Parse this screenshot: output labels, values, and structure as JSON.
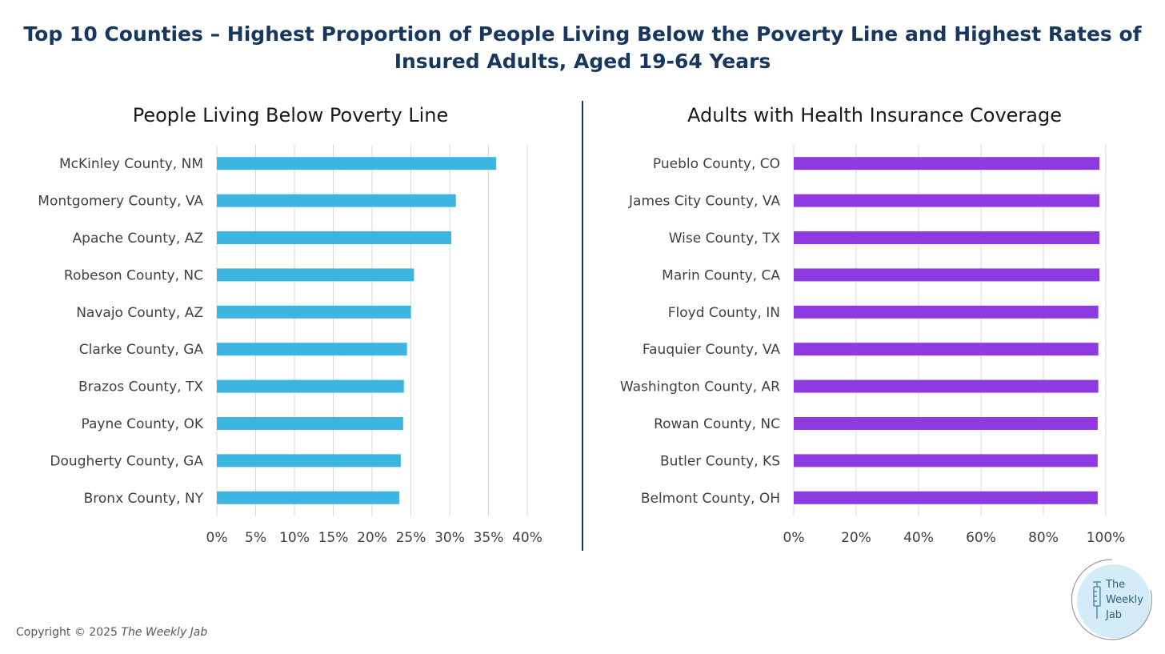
{
  "title": {
    "line1": "Top 10 Counties – Highest Proportion of People Living Below the Poverty Line and Highest Rates of",
    "line2": "Insured Adults, Aged 19-64 Years"
  },
  "chart_data": [
    {
      "type": "bar",
      "orientation": "horizontal",
      "title": "People Living Below Poverty Line",
      "categories": [
        "McKinley County, NM",
        "Montgomery County, VA",
        "Apache County, AZ",
        "Robeson County, NC",
        "Navajo County, AZ",
        "Clarke County, GA",
        "Brazos County, TX",
        "Payne County, OK",
        "Dougherty County, GA",
        "Bronx County, NY"
      ],
      "values": [
        36.0,
        30.8,
        30.2,
        25.4,
        25.0,
        24.5,
        24.1,
        24.0,
        23.7,
        23.5
      ],
      "xlim": [
        0,
        40
      ],
      "xticks": [
        "0%",
        "5%",
        "10%",
        "15%",
        "20%",
        "25%",
        "30%",
        "35%",
        "40%"
      ],
      "grid": true,
      "color": "#3cb6e0"
    },
    {
      "type": "bar",
      "orientation": "horizontal",
      "title": "Adults with Health Insurance Coverage",
      "categories": [
        "Pueblo County, CO",
        "James City County, VA",
        "Wise County, TX",
        "Marin County, CA",
        "Floyd County, IN",
        "Fauquier County, VA",
        "Washington County, AR",
        "Rowan County, NC",
        "Butler County, KS",
        "Belmont County, OH"
      ],
      "values": [
        98.0,
        98.0,
        98.0,
        98.0,
        97.6,
        97.6,
        97.6,
        97.4,
        97.4,
        97.4
      ],
      "xlim": [
        0,
        100
      ],
      "xticks": [
        "0%",
        "20%",
        "40%",
        "60%",
        "80%",
        "100%"
      ],
      "grid": true,
      "color": "#8e3ae0"
    }
  ],
  "footer": {
    "copyright_prefix": "Copyright © 2025 ",
    "copyright_brand": "The Weekly Jab"
  },
  "logo": {
    "line1": "The",
    "line2": "Weekly",
    "line3": "Jab",
    "icon": "syringe-icon",
    "bg_color": "#d3ecf7",
    "ring_color": "#9a9a9a"
  }
}
